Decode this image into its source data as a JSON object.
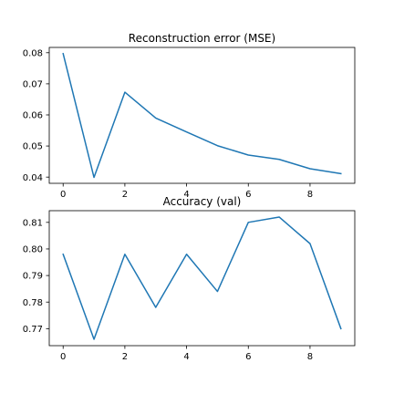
{
  "colors": {
    "series": "#1f77b4",
    "axes": "#000000",
    "background": "#ffffff"
  },
  "chart_data": [
    {
      "type": "line",
      "title": "Reconstruction error (MSE)",
      "xlabel": "",
      "ylabel": "",
      "x": [
        0,
        1,
        2,
        3,
        4,
        5,
        6,
        7,
        8,
        9
      ],
      "series": [
        {
          "values": [
            0.0797,
            0.0399,
            0.0673,
            0.059,
            0.0545,
            0.0501,
            0.0471,
            0.0457,
            0.0427,
            0.0411
          ]
        }
      ],
      "xlim": [
        -0.45,
        9.45
      ],
      "ylim": [
        0.038,
        0.0817
      ],
      "xticks": [
        0,
        2,
        4,
        6,
        8
      ],
      "xtick_labels": [
        "0",
        "2",
        "4",
        "6",
        "8"
      ],
      "yticks": [
        0.04,
        0.05,
        0.06,
        0.07,
        0.08
      ],
      "ytick_labels": [
        "0.04",
        "0.05",
        "0.06",
        "0.07",
        "0.08"
      ],
      "grid": false,
      "legend": "none"
    },
    {
      "type": "line",
      "title": "Accuracy (val)",
      "xlabel": "",
      "ylabel": "",
      "x": [
        0,
        1,
        2,
        3,
        4,
        5,
        6,
        7,
        8,
        9
      ],
      "series": [
        {
          "values": [
            0.798,
            0.766,
            0.798,
            0.778,
            0.798,
            0.784,
            0.81,
            0.812,
            0.802,
            0.77
          ]
        }
      ],
      "xlim": [
        -0.45,
        9.45
      ],
      "ylim": [
        0.7636,
        0.8144
      ],
      "xticks": [
        0,
        2,
        4,
        6,
        8
      ],
      "xtick_labels": [
        "0",
        "2",
        "4",
        "6",
        "8"
      ],
      "yticks": [
        0.77,
        0.78,
        0.79,
        0.8,
        0.81
      ],
      "ytick_labels": [
        "0.77",
        "0.78",
        "0.79",
        "0.80",
        "0.81"
      ],
      "grid": false,
      "legend": "none"
    }
  ]
}
